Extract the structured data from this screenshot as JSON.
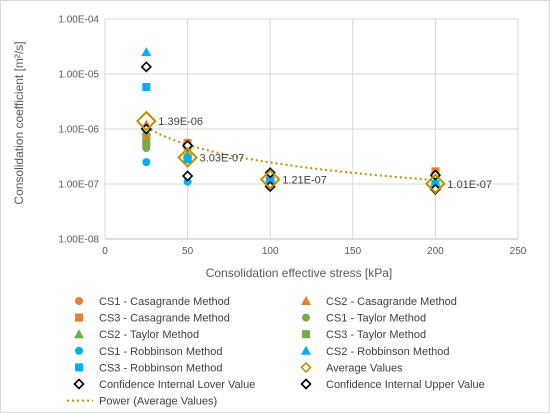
{
  "chart_data": {
    "type": "scatter",
    "title": "",
    "xlabel": "Consolidation effective stress [kPa]",
    "ylabel": "Consolidation coefficient [m²/s]",
    "xlim": [
      0,
      250
    ],
    "ylim": [
      1e-08,
      0.0001
    ],
    "yscale": "log",
    "grid": true,
    "legend_placement": "bottom",
    "x_ticks": [
      "0",
      "50",
      "100",
      "150",
      "200",
      "250"
    ],
    "y_ticks": [
      "1.00E-08",
      "1.00E-07",
      "1.00E-06",
      "1.00E-05",
      "1.00E-04"
    ],
    "series": [
      {
        "name": "CS1 - Casagrande Method",
        "marker": "circle",
        "color": "#ED7D31",
        "points": [
          [
            25,
            7e-07
          ],
          [
            50,
            4.5e-07
          ],
          [
            100,
            1.3e-07
          ],
          [
            200,
            1.4e-07
          ]
        ]
      },
      {
        "name": "CS2 - Casagrande Method",
        "marker": "triangle",
        "color": "#ED7D31",
        "points": [
          [
            25,
            1.2e-06
          ],
          [
            50,
            5.3e-07
          ],
          [
            100,
            1.5e-07
          ],
          [
            200,
            1.6e-07
          ]
        ]
      },
      {
        "name": "CS3 - Casagrande Method",
        "marker": "square",
        "color": "#ED7D31",
        "points": [
          [
            25,
            6e-07
          ],
          [
            50,
            5.6e-07
          ],
          [
            100,
            1.4e-07
          ],
          [
            200,
            1.7e-07
          ]
        ]
      },
      {
        "name": "CS1 - Taylor Method",
        "marker": "circle",
        "color": "#70AD47",
        "points": [
          [
            25,
            4.5e-07
          ],
          [
            50,
            3.2e-07
          ],
          [
            100,
            1.2e-07
          ],
          [
            200,
            1e-07
          ]
        ]
      },
      {
        "name": "CS2 - Taylor Method",
        "marker": "triangle",
        "color": "#70AD47",
        "points": [
          [
            25,
            9e-07
          ],
          [
            50,
            3.5e-07
          ],
          [
            100,
            1.3e-07
          ],
          [
            200,
            1e-07
          ]
        ]
      },
      {
        "name": "CS3 - Taylor Method",
        "marker": "square",
        "color": "#70AD47",
        "points": [
          [
            25,
            5.5e-07
          ],
          [
            50,
            3e-07
          ],
          [
            100,
            1.1e-07
          ],
          [
            200,
            9.5e-08
          ]
        ]
      },
      {
        "name": "CS1 - Robbinson Method",
        "marker": "circle",
        "color": "#00B0F0",
        "points": [
          [
            25,
            2.5e-07
          ],
          [
            50,
            1.1e-07
          ],
          [
            100,
            1e-07
          ],
          [
            200,
            9e-08
          ]
        ]
      },
      {
        "name": "CS2 - Robbinson Method",
        "marker": "triangle",
        "color": "#00B0F0",
        "points": [
          [
            25,
            2.5e-05
          ],
          [
            50,
            3e-07
          ],
          [
            100,
            1.2e-07
          ],
          [
            200,
            1.05e-07
          ]
        ]
      },
      {
        "name": "CS3 - Robbinson Method",
        "marker": "square",
        "color": "#00B0F0",
        "points": [
          [
            25,
            5.8e-06
          ],
          [
            50,
            2.8e-07
          ],
          [
            100,
            1.15e-07
          ],
          [
            200,
            1e-07
          ]
        ]
      },
      {
        "name": "Average Values",
        "marker": "diamond-large",
        "color": "#BF9000",
        "points": [
          [
            25,
            1.39e-06
          ],
          [
            50,
            3.03e-07
          ],
          [
            100,
            1.21e-07
          ],
          [
            200,
            1.01e-07
          ]
        ]
      },
      {
        "name": "Confidence Internal Lover Value",
        "marker": "diamond",
        "color": "#000000",
        "points": [
          [
            25,
            1e-06
          ],
          [
            50,
            1.4e-07
          ],
          [
            100,
            9e-08
          ],
          [
            200,
            8e-08
          ]
        ]
      },
      {
        "name": "Confidence Internal Upper Value",
        "marker": "diamond",
        "color": "#000000",
        "points": [
          [
            25,
            1.35e-05
          ],
          [
            50,
            5e-07
          ],
          [
            100,
            1.6e-07
          ],
          [
            200,
            1.45e-07
          ]
        ]
      }
    ],
    "trendline": {
      "name": "Power (Average Values)",
      "color": "#BF9000",
      "style": "dotted",
      "coefficient": 3.4e-05,
      "exponent": -1.07,
      "x_range": [
        25,
        200
      ]
    },
    "annotations": [
      {
        "text": "1.39E-06",
        "x": 25,
        "y": 1.39e-06
      },
      {
        "text": "3.03E-07",
        "x": 50,
        "y": 3.03e-07
      },
      {
        "text": "1.21E-07",
        "x": 100,
        "y": 1.21e-07
      },
      {
        "text": "1.01E-07",
        "x": 200,
        "y": 1.01e-07
      }
    ]
  }
}
